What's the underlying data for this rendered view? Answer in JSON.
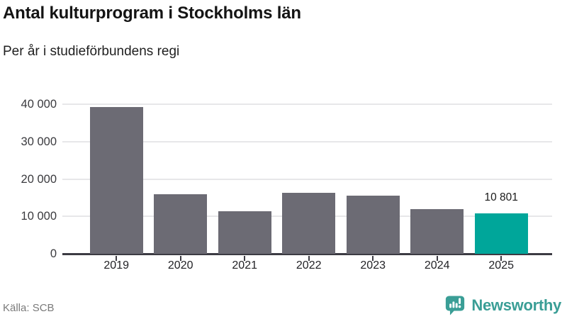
{
  "header": {
    "title": "Antal kulturprogram i Stockholms län",
    "subtitle": "Per år i studieförbundens regi"
  },
  "chart_data": {
    "type": "bar",
    "title": "Antal kulturprogram i Stockholms län",
    "subtitle": "Per år i studieförbundens regi",
    "categories": [
      "2019",
      "2020",
      "2021",
      "2022",
      "2023",
      "2024",
      "2025"
    ],
    "values": [
      39200,
      15900,
      11300,
      16400,
      15500,
      11900,
      10801
    ],
    "highlight_index": 6,
    "highlight_value_label": "10 801",
    "xlabel": "",
    "ylabel": "",
    "ylim": [
      0,
      40000
    ],
    "yticks": [
      0,
      10000,
      20000,
      30000,
      40000
    ],
    "ytick_labels": [
      "0",
      "10 000",
      "20 000",
      "30 000",
      "40 000"
    ],
    "grid": true,
    "legend": "none",
    "bar_color": "#6c6b74",
    "highlight_color": "#00a69a"
  },
  "footer": {
    "source": "Källa: SCB",
    "brand": "Newsworthy"
  },
  "colors": {
    "axis": "#3c3b43",
    "gridline": "#e7e7e9",
    "brand_teal": "#3a9e96",
    "text_dark": "#141414"
  }
}
